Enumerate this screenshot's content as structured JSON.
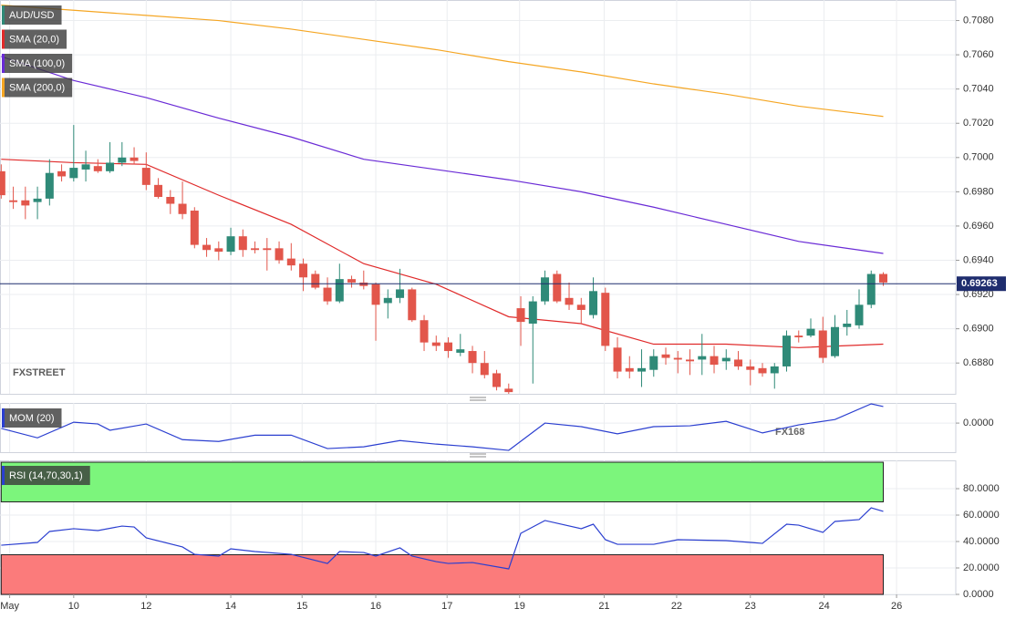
{
  "watermarks": {
    "fxstreet": "FXSTREET",
    "fx168": "FX168"
  },
  "chart_data": [
    {
      "type": "candlestick",
      "title": "AUD/USD",
      "up_color": "#2f8a78",
      "down_color": "#e2564b",
      "x": [
        0,
        1,
        2,
        3,
        4,
        5,
        6,
        7,
        8,
        9,
        10,
        11,
        12,
        13,
        14,
        15,
        16,
        17,
        18,
        19,
        20,
        21,
        22,
        23,
        24,
        25,
        26,
        27,
        28,
        29,
        30,
        31,
        32,
        33,
        34,
        35,
        36,
        37,
        38,
        39,
        40,
        41,
        42,
        43,
        44,
        45,
        46,
        47,
        48,
        49,
        50,
        51,
        52,
        53,
        54,
        55,
        56,
        57,
        58,
        59,
        60,
        61,
        62,
        63,
        64,
        65,
        66,
        67,
        68,
        69,
        70,
        71,
        72,
        73
      ],
      "open": [
        0.6992,
        0.6975,
        0.6975,
        0.6974,
        0.6976,
        0.6992,
        0.6988,
        0.6993,
        0.6995,
        0.6992,
        0.6997,
        0.7,
        0.6994,
        0.6984,
        0.6977,
        0.6973,
        0.6969,
        0.6949,
        0.6947,
        0.6945,
        0.6954,
        0.6947,
        0.6947,
        0.6947,
        0.6941,
        0.6938,
        0.6932,
        0.6924,
        0.6916,
        0.6929,
        0.6927,
        0.6926,
        0.6915,
        0.6918,
        0.6923,
        0.6905,
        0.6892,
        0.6892,
        0.6886,
        0.6887,
        0.688,
        0.6874,
        0.6865,
        0.6912,
        0.6903,
        0.6916,
        0.6932,
        0.6918,
        0.6914,
        0.6908,
        0.6921,
        0.6889,
        0.6877,
        0.6875,
        0.6876,
        0.6885,
        0.6883,
        0.6882,
        0.6882,
        0.6884,
        0.6881,
        0.6882,
        0.6878,
        0.6877,
        0.6874,
        0.6878,
        0.6896,
        0.6896,
        0.6899,
        0.6884,
        0.6901,
        0.6902,
        0.6914,
        0.6932
      ],
      "high": [
        0.6996,
        0.6983,
        0.6983,
        0.6983,
        0.6999,
        0.6996,
        0.7019,
        0.7004,
        0.6999,
        0.7009,
        0.7009,
        0.7006,
        0.7003,
        0.6988,
        0.6981,
        0.6986,
        0.6971,
        0.6953,
        0.6951,
        0.6959,
        0.6958,
        0.6951,
        0.6953,
        0.6951,
        0.695,
        0.6941,
        0.6934,
        0.693,
        0.6938,
        0.6931,
        0.6934,
        0.6927,
        0.6923,
        0.6935,
        0.6924,
        0.6908,
        0.6896,
        0.6895,
        0.6897,
        0.689,
        0.6887,
        0.6876,
        0.6868,
        0.6919,
        0.6919,
        0.6934,
        0.6934,
        0.6927,
        0.6918,
        0.693,
        0.6924,
        0.6895,
        0.6884,
        0.6888,
        0.6888,
        0.6889,
        0.6887,
        0.6888,
        0.6897,
        0.689,
        0.6888,
        0.6887,
        0.6882,
        0.688,
        0.688,
        0.6899,
        0.6899,
        0.6906,
        0.6907,
        0.6908,
        0.6911,
        0.6923,
        0.6934,
        0.6933
      ],
      "low": [
        0.6976,
        0.697,
        0.6964,
        0.6964,
        0.6972,
        0.6986,
        0.6986,
        0.6986,
        0.6991,
        0.6991,
        0.6995,
        0.6996,
        0.6981,
        0.6976,
        0.6967,
        0.6964,
        0.6947,
        0.6942,
        0.694,
        0.6943,
        0.6942,
        0.6944,
        0.6934,
        0.6938,
        0.6934,
        0.6922,
        0.6923,
        0.6914,
        0.6915,
        0.6924,
        0.6923,
        0.6893,
        0.6906,
        0.6915,
        0.6904,
        0.6887,
        0.6887,
        0.6883,
        0.6884,
        0.6874,
        0.6871,
        0.6864,
        0.6862,
        0.689,
        0.6868,
        0.6914,
        0.6915,
        0.6911,
        0.6903,
        0.6906,
        0.6887,
        0.6871,
        0.6871,
        0.6866,
        0.6872,
        0.6879,
        0.6874,
        0.6873,
        0.6873,
        0.6874,
        0.6876,
        0.6876,
        0.6867,
        0.6872,
        0.6865,
        0.6875,
        0.6892,
        0.6895,
        0.688,
        0.6883,
        0.6896,
        0.69,
        0.6912,
        0.6925
      ],
      "close": [
        0.6978,
        0.6974,
        0.6972,
        0.6976,
        0.6991,
        0.6989,
        0.6994,
        0.6996,
        0.6992,
        0.6997,
        0.7,
        0.6998,
        0.6984,
        0.6977,
        0.6973,
        0.6967,
        0.6949,
        0.6946,
        0.6945,
        0.6954,
        0.6946,
        0.6946,
        0.6946,
        0.694,
        0.6937,
        0.693,
        0.6924,
        0.6916,
        0.6929,
        0.6927,
        0.6925,
        0.6914,
        0.6918,
        0.6923,
        0.6905,
        0.6892,
        0.689,
        0.6887,
        0.6888,
        0.688,
        0.6873,
        0.6866,
        0.6863,
        0.6904,
        0.6916,
        0.693,
        0.6916,
        0.6914,
        0.6911,
        0.6922,
        0.689,
        0.6875,
        0.6875,
        0.6877,
        0.6884,
        0.6883,
        0.6882,
        0.6881,
        0.6884,
        0.6879,
        0.6883,
        0.6878,
        0.6876,
        0.6874,
        0.6878,
        0.6896,
        0.6895,
        0.69,
        0.6883,
        0.6901,
        0.6903,
        0.6914,
        0.6932,
        0.6927
      ],
      "series": [
        {
          "name": "SMA (20,0)",
          "color": "#e02a2a",
          "x": [
            0,
            6,
            12,
            18,
            24,
            30,
            36,
            42,
            48,
            54,
            60,
            66,
            73
          ],
          "values": [
            0.6999,
            0.6997,
            0.6996,
            0.6978,
            0.6961,
            0.6938,
            0.6926,
            0.6907,
            0.6903,
            0.6891,
            0.6891,
            0.6889,
            0.6891
          ]
        },
        {
          "name": "SMA (100,0)",
          "color": "#6a2bd6",
          "x": [
            0,
            6,
            12,
            18,
            24,
            30,
            36,
            42,
            48,
            54,
            60,
            66,
            73
          ],
          "values": [
            0.7059,
            0.7045,
            0.7035,
            0.7023,
            0.7012,
            0.6999,
            0.6993,
            0.6987,
            0.698,
            0.6971,
            0.6961,
            0.6951,
            0.6944
          ]
        },
        {
          "name": "SMA (200,0)",
          "color": "#f5a623",
          "x": [
            0,
            6,
            12,
            18,
            24,
            30,
            36,
            42,
            48,
            54,
            60,
            66,
            73
          ],
          "values": [
            0.7089,
            0.7086,
            0.7083,
            0.708,
            0.7075,
            0.7069,
            0.7063,
            0.7056,
            0.705,
            0.7043,
            0.7037,
            0.703,
            0.7024
          ]
        }
      ],
      "last_price": 0.69263,
      "last_price_color": "#1f2d6e",
      "xlim": [
        -0.1,
        79
      ],
      "ylim": [
        0.6862,
        0.7092
      ],
      "yticks": [
        {
          "value": 0.708,
          "label": "0.7080"
        },
        {
          "value": 0.706,
          "label": "0.7060"
        },
        {
          "value": 0.704,
          "label": "0.7040"
        },
        {
          "value": 0.702,
          "label": "0.7020"
        },
        {
          "value": 0.7,
          "label": "0.7000"
        },
        {
          "value": 0.698,
          "label": "0.6980"
        },
        {
          "value": 0.696,
          "label": "0.6960"
        },
        {
          "value": 0.694,
          "label": "0.6940"
        },
        {
          "value": 0.692,
          "label": "0.6920"
        },
        {
          "value": 0.69,
          "label": "0.6900"
        },
        {
          "value": 0.688,
          "label": "0.6880"
        }
      ],
      "grid": true
    },
    {
      "type": "line",
      "series": [
        {
          "name": "MOM (20)",
          "color": "#2b3fd0",
          "x": [
            0,
            3,
            6,
            8,
            9,
            12,
            15,
            18,
            21,
            24,
            27,
            30,
            33,
            36,
            39,
            42,
            45,
            48,
            51,
            54,
            57,
            60,
            63,
            66,
            69,
            72,
            73
          ],
          "values": [
            -0.0012,
            -0.0033,
            0.0002,
            -0.0002,
            -0.0016,
            -0.0002,
            -0.0037,
            -0.0041,
            -0.0027,
            -0.0027,
            -0.0057,
            -0.0053,
            -0.0039,
            -0.0047,
            -0.0053,
            -0.0061,
            0,
            -0.0008,
            -0.0024,
            -0.0008,
            -0.0006,
            0.0004,
            -0.0022,
            -0.0004,
            0.0008,
            0.0043,
            0.0037
          ]
        }
      ],
      "xlim": [
        -0.1,
        79
      ],
      "ylim": [
        -0.0065,
        0.0045
      ],
      "yticks": [
        {
          "value": 0,
          "label": "0.0000"
        }
      ],
      "grid": true
    },
    {
      "type": "line",
      "series": [
        {
          "name": "RSI (14,70,30,1)",
          "color": "#2b3fd0",
          "x": [
            0,
            3,
            4,
            6,
            8,
            10,
            11,
            12,
            15,
            16,
            18,
            19,
            21,
            24,
            27,
            28,
            30,
            31,
            33,
            34,
            36,
            37,
            39,
            42,
            43,
            45,
            48,
            49,
            50,
            51,
            54,
            56,
            60,
            62,
            63,
            65,
            66,
            68,
            69,
            71,
            72,
            73
          ],
          "values": [
            37.2,
            39.3,
            47.6,
            49.7,
            48.3,
            51.7,
            51,
            42.8,
            35.9,
            30.3,
            29,
            34.5,
            32.4,
            30.3,
            23.4,
            32.4,
            31.7,
            29,
            35.2,
            29,
            24.8,
            23.4,
            24.1,
            19.3,
            46.2,
            55.9,
            49.7,
            53.1,
            41.4,
            37.9,
            37.9,
            41.4,
            40.7,
            39.3,
            38.6,
            53.1,
            52.4,
            46.9,
            55.2,
            56.6,
            65.5,
            62.8
          ]
        }
      ],
      "bands": [
        {
          "range": [
            70,
            100
          ],
          "color": "#7cf57c"
        },
        {
          "range": [
            0,
            30
          ],
          "color": "#fb7b7b"
        }
      ],
      "xlim": [
        -0.1,
        79
      ],
      "ylim": [
        0,
        101.4
      ],
      "yticks": [
        {
          "value": 80,
          "label": "80.0000"
        },
        {
          "value": 60,
          "label": "60.0000"
        },
        {
          "value": 40,
          "label": "40.0000"
        },
        {
          "value": 20,
          "label": "20.0000"
        },
        {
          "value": 0,
          "label": "0.0000"
        }
      ],
      "xticks": [
        {
          "value": 0.7,
          "label": "May"
        },
        {
          "value": 6,
          "label": "10"
        },
        {
          "value": 12,
          "label": "12"
        },
        {
          "value": 19,
          "label": "14"
        },
        {
          "value": 24.9,
          "label": "15"
        },
        {
          "value": 31,
          "label": "16"
        },
        {
          "value": 36.9,
          "label": "17"
        },
        {
          "value": 42.9,
          "label": "19"
        },
        {
          "value": 49.9,
          "label": "21"
        },
        {
          "value": 55.9,
          "label": "22"
        },
        {
          "value": 62,
          "label": "23"
        },
        {
          "value": 68.1,
          "label": "24"
        },
        {
          "value": 74.1,
          "label": "26"
        }
      ],
      "grid": true
    }
  ]
}
